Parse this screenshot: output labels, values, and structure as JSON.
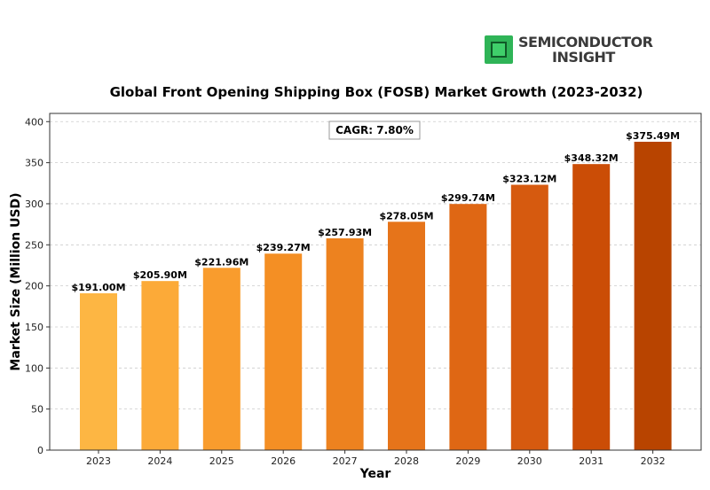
{
  "brand": {
    "line1": "SEMICONDUCTOR",
    "line2": "INSIGHT",
    "chip_color": "#2fb457"
  },
  "chart_data": {
    "type": "bar",
    "title": "Global Front Opening Shipping Box (FOSB) Market Growth (2023-2032)",
    "xlabel": "Year",
    "ylabel": "Market Size (Million USD)",
    "categories": [
      "2023",
      "2024",
      "2025",
      "2026",
      "2027",
      "2028",
      "2029",
      "2030",
      "2031",
      "2032"
    ],
    "values": [
      191.0,
      205.9,
      221.96,
      239.27,
      257.93,
      278.05,
      299.74,
      323.12,
      348.32,
      375.49
    ],
    "data_labels": [
      "$191.00M",
      "$205.90M",
      "$221.96M",
      "$239.27M",
      "$257.93M",
      "$278.05M",
      "$299.74M",
      "$323.12M",
      "$348.32M",
      "$375.49M"
    ],
    "ylim": [
      0,
      410
    ],
    "yticks": [
      0,
      50,
      100,
      150,
      200,
      250,
      300,
      350,
      400
    ],
    "grid": true,
    "annotation": "CAGR: 7.80%",
    "colors": [
      "#FDB643",
      "#FCAA38",
      "#F99C2D",
      "#F48F24",
      "#ED821F",
      "#E6741A",
      "#DF6714",
      "#D65A0F",
      "#CB4D06",
      "#B84400"
    ]
  }
}
